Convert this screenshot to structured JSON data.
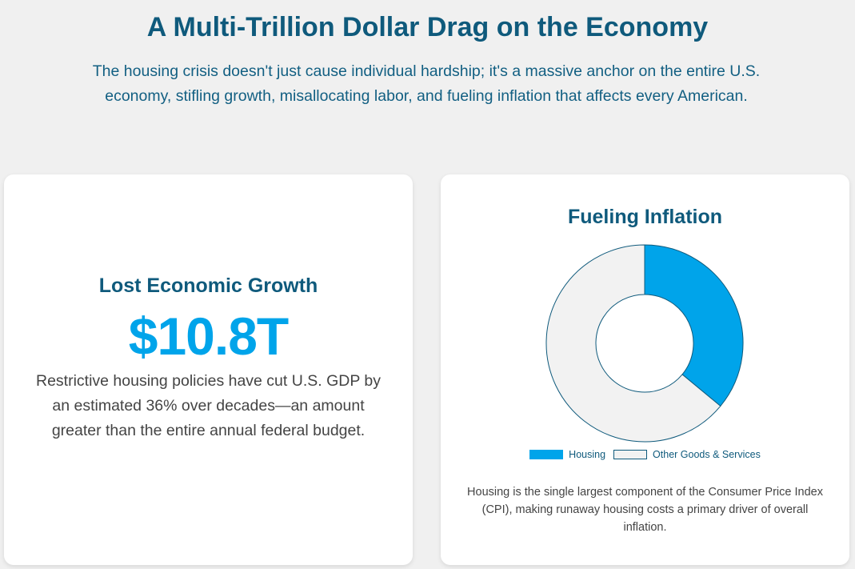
{
  "header": {
    "title": "A Multi-Trillion Dollar Drag on the Economy",
    "subtitle": "The housing crisis doesn't just cause individual hardship; it's a massive anchor on the entire U.S. economy, stifling growth, misallocating labor, and fueling inflation that affects every American."
  },
  "growth_card": {
    "heading": "Lost Economic Growth",
    "value": "$10.8T",
    "description": "Restrictive housing policies have cut U.S. GDP by an estimated 36% over decades—an amount greater than the entire annual federal budget."
  },
  "inflation_card": {
    "heading": "Fueling Inflation",
    "description": "Housing is the single largest component of the Consumer Price Index (CPI), making runaway housing costs a primary driver of overall inflation."
  },
  "chart_data": {
    "type": "pie",
    "labels": [
      "Housing",
      "Other Goods & Services"
    ],
    "values": [
      36,
      64
    ],
    "colors": [
      "#00a4ea",
      "#f2f2f2"
    ],
    "border_color": "#0f5a7c",
    "legend_position": "bottom"
  }
}
